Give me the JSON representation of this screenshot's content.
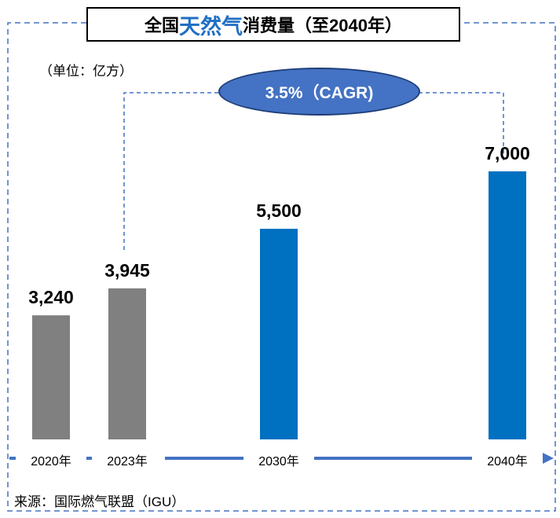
{
  "title": {
    "prefix": "全国",
    "highlight": "天然气",
    "suffix": "消费量（至2040年）"
  },
  "unit_label": "（单位：亿方）",
  "cagr_label": "3.5%（CAGR)",
  "source_label": "来源：国际燃气联盟（IGU）",
  "colors": {
    "historical": "#808080",
    "forecast": "#0070C0",
    "arrow": "#4472C4",
    "title_highlight": "#1F6FC4"
  },
  "chart_data": {
    "type": "bar",
    "title": "全国天然气消费量（至2040年）",
    "ylabel": "（单位：亿方）",
    "categories": [
      "2020年",
      "2023年",
      "2030年",
      "2040年"
    ],
    "values": [
      3240,
      3945,
      5500,
      7000
    ],
    "value_labels": [
      "3,240",
      "3,945",
      "5,500",
      "7,000"
    ],
    "bar_status": [
      "historical",
      "historical",
      "forecast",
      "forecast"
    ],
    "annotation": "3.5%（CAGR)",
    "ylim": [
      0,
      7000
    ],
    "grid": false,
    "legend": "none"
  }
}
